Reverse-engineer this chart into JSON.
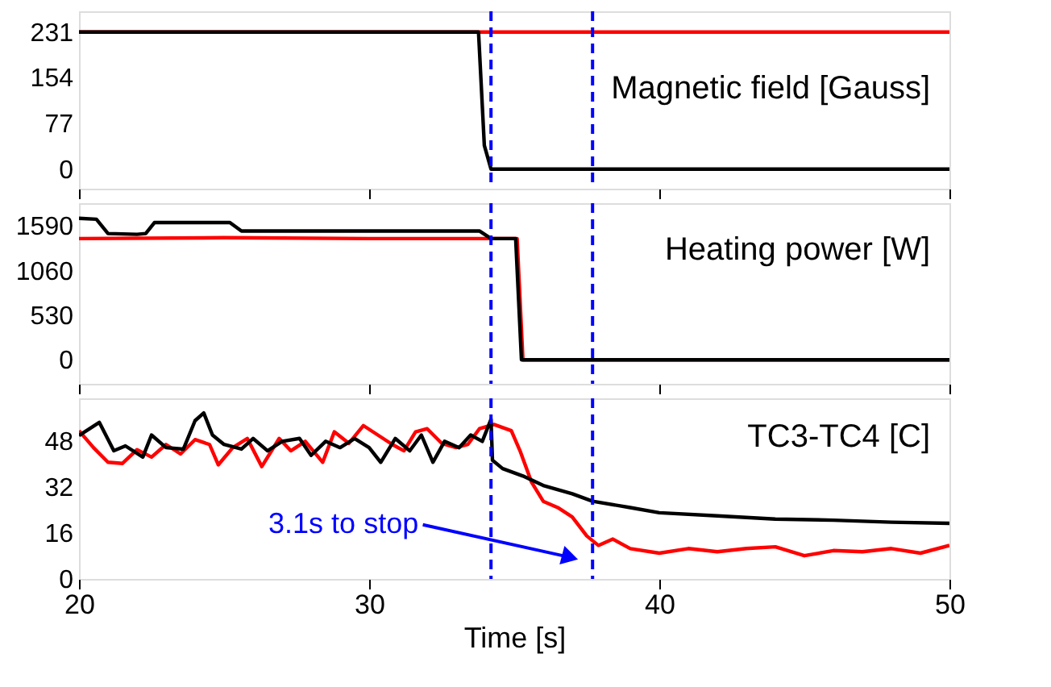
{
  "chart_data": [
    {
      "type": "line",
      "title": "Magnetic field [Gauss]",
      "xlim": [
        20,
        50
      ],
      "xticks": [
        20,
        30,
        40,
        50
      ],
      "ylim": [
        -33,
        266
      ],
      "yticks": [
        0,
        77,
        154,
        231
      ],
      "tick_labels": "y",
      "grid": false,
      "line_style": "solid",
      "marker": "none",
      "ref_lines": [
        {
          "axis": "x",
          "value": 34.2,
          "color": "#0000ff",
          "line_style": "dashed"
        },
        {
          "axis": "x",
          "value": 37.7,
          "color": "#0000ff",
          "line_style": "dashed"
        }
      ],
      "series": [
        {
          "color": "#ff0000",
          "x": [
            20,
            35,
            50
          ],
          "values": [
            231,
            231,
            231
          ]
        },
        {
          "color": "#000000",
          "x": [
            20,
            33.77,
            33.97,
            34.2,
            50
          ],
          "values": [
            231,
            231,
            40,
            0,
            0
          ]
        }
      ]
    },
    {
      "type": "line",
      "title": "Heating power [W]",
      "xlim": [
        20,
        50
      ],
      "xticks": [
        20,
        30,
        40,
        50
      ],
      "ylim": [
        -285,
        1860
      ],
      "yticks": [
        0,
        530,
        1060,
        1590
      ],
      "tick_labels": "y",
      "grid": false,
      "line_style": "solid",
      "marker": "none",
      "ref_lines": [
        {
          "axis": "x",
          "value": 34.2,
          "color": "#0000ff",
          "line_style": "dashed"
        },
        {
          "axis": "x",
          "value": 37.7,
          "color": "#0000ff",
          "line_style": "dashed"
        }
      ],
      "series": [
        {
          "color": "#ff0000",
          "x": [
            20,
            25,
            30,
            35.1,
            35.3,
            50
          ],
          "values": [
            1440,
            1450,
            1440,
            1440,
            0,
            0
          ]
        },
        {
          "color": "#000000",
          "x": [
            20,
            20.6,
            21,
            22,
            22.3,
            22.6,
            25.2,
            25.6,
            33.8,
            34.2,
            35.05,
            35.25,
            50
          ],
          "values": [
            1680,
            1670,
            1500,
            1490,
            1500,
            1630,
            1630,
            1530,
            1530,
            1440,
            1440,
            0,
            0
          ]
        }
      ]
    },
    {
      "type": "line",
      "title": "TC3-TC4 [C]",
      "xlabel": "Time [s]",
      "xlim": [
        20,
        50
      ],
      "xticks": [
        20,
        30,
        40,
        50
      ],
      "ylim": [
        0,
        63
      ],
      "yticks": [
        0,
        16,
        32,
        48
      ],
      "grid": false,
      "line_style": "solid",
      "marker": "none",
      "ref_lines": [
        {
          "axis": "x",
          "value": 34.2,
          "color": "#0000ff",
          "line_style": "dashed"
        },
        {
          "axis": "x",
          "value": 37.7,
          "color": "#0000ff",
          "line_style": "dashed"
        }
      ],
      "annotations": [
        "3.1s to stop"
      ],
      "series": [
        {
          "color": "#ff0000",
          "x": [
            20,
            20.5,
            21,
            21.5,
            22,
            22.5,
            23,
            23.5,
            24,
            24.5,
            24.8,
            25.3,
            25.8,
            26.3,
            26.9,
            27.3,
            27.8,
            28.4,
            28.8,
            29.3,
            29.8,
            30.3,
            30.8,
            31.2,
            31.6,
            32,
            32.5,
            33,
            33.4,
            33.8,
            34.3,
            34.9,
            35.2,
            35.6,
            36,
            36.5,
            37,
            37.5,
            37.9,
            38.4,
            39,
            40,
            41,
            42,
            43,
            44,
            45,
            46,
            47,
            48,
            49,
            50
          ],
          "values": [
            51.7,
            45.8,
            40.7,
            40.3,
            45.1,
            42.5,
            46.9,
            43.6,
            48.6,
            46.9,
            39.8,
            45.8,
            49,
            39.2,
            49,
            44.7,
            48,
            40.7,
            51.3,
            47.3,
            53.5,
            50.2,
            46.9,
            44.7,
            51.3,
            52.4,
            47.3,
            45.8,
            46.9,
            52.4,
            53.9,
            51.7,
            44.7,
            33.7,
            27.1,
            24.9,
            21.6,
            15,
            11.7,
            13.9,
            10.6,
            9,
            10.6,
            9.5,
            10.6,
            11.2,
            8.1,
            9.9,
            9.5,
            10.6,
            9,
            11.7
          ]
        },
        {
          "color": "#000000",
          "x": [
            20,
            20.7,
            21.2,
            21.6,
            22.2,
            22.5,
            23,
            23.6,
            24,
            24.3,
            24.6,
            25,
            25.6,
            26,
            26.5,
            27,
            27.6,
            28,
            28.5,
            29,
            29.5,
            30,
            30.4,
            30.9,
            31.4,
            31.8,
            32.2,
            32.6,
            33.1,
            33.5,
            33.9,
            34.2,
            34.25,
            34.6,
            35.3,
            36,
            37,
            37.7,
            39,
            40,
            42,
            44,
            46,
            48,
            50
          ],
          "values": [
            50,
            54.6,
            44.7,
            46.4,
            42.5,
            50.2,
            45.8,
            45.3,
            55.2,
            57.9,
            50.2,
            46.9,
            45.3,
            49,
            44.7,
            48,
            49,
            43.1,
            48,
            45.8,
            49,
            45.8,
            40.7,
            49,
            44.7,
            50.2,
            40.7,
            48,
            45.8,
            50.2,
            48,
            55.7,
            41.4,
            38.5,
            35.9,
            32.6,
            29.7,
            27.1,
            24.9,
            23.1,
            22,
            20.9,
            20.5,
            19.8,
            19.4
          ]
        }
      ]
    }
  ]
}
